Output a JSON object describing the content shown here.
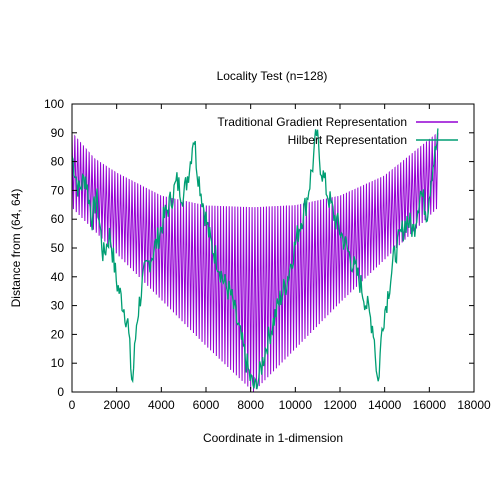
{
  "chart_data": {
    "type": "line",
    "title": "Locality Test (n=128)",
    "xlabel": "Coordinate in 1-dimension",
    "ylabel": "Distance from (64, 64)",
    "xlim": [
      0,
      18000
    ],
    "ylim": [
      0,
      100
    ],
    "xticks": [
      0,
      2000,
      4000,
      6000,
      8000,
      10000,
      12000,
      14000,
      16000,
      18000
    ],
    "yticks": [
      0,
      10,
      20,
      30,
      40,
      50,
      60,
      70,
      80,
      90,
      100
    ],
    "grid": false,
    "legend_position": "top-right",
    "series": [
      {
        "name": "Traditional Gradient Representation",
        "color": "#9400d3",
        "x_range": [
          0,
          16383
        ],
        "points_estimated": [
          [
            0,
            90
          ],
          [
            1000,
            81
          ],
          [
            2000,
            76
          ],
          [
            4000,
            68
          ],
          [
            6000,
            64.6
          ],
          [
            8128,
            64
          ],
          [
            10000,
            64.7
          ],
          [
            12000,
            68
          ],
          [
            14000,
            75
          ],
          [
            16383,
            90
          ]
        ],
        "note_envelope_lower": [
          [
            0,
            64
          ],
          [
            2000,
            48
          ],
          [
            4000,
            32
          ],
          [
            6000,
            16
          ],
          [
            8128,
            0
          ],
          [
            10000,
            15
          ],
          [
            12000,
            31
          ],
          [
            14000,
            46
          ],
          [
            16383,
            64
          ]
        ]
      },
      {
        "name": "Hilbert Representation",
        "color": "#009e73",
        "points_estimated": [
          [
            0,
            82
          ],
          [
            300,
            70
          ],
          [
            600,
            75
          ],
          [
            900,
            60
          ],
          [
            1100,
            68
          ],
          [
            1400,
            47
          ],
          [
            1700,
            55
          ],
          [
            2000,
            38
          ],
          [
            2300,
            30
          ],
          [
            2500,
            24
          ],
          [
            2700,
            2
          ],
          [
            2900,
            25
          ],
          [
            3200,
            40
          ],
          [
            3500,
            46
          ],
          [
            3800,
            52
          ],
          [
            4100,
            60
          ],
          [
            4400,
            66
          ],
          [
            4700,
            73
          ],
          [
            5000,
            68
          ],
          [
            5300,
            80
          ],
          [
            5450,
            90
          ],
          [
            5600,
            78
          ],
          [
            5900,
            64
          ],
          [
            6200,
            52
          ],
          [
            6500,
            46
          ],
          [
            6800,
            38
          ],
          [
            7100,
            34
          ],
          [
            7400,
            24
          ],
          [
            7700,
            14
          ],
          [
            8000,
            4
          ],
          [
            8200,
            1
          ],
          [
            8400,
            6
          ],
          [
            8700,
            16
          ],
          [
            9000,
            24
          ],
          [
            9300,
            32
          ],
          [
            9600,
            38
          ],
          [
            9900,
            48
          ],
          [
            10200,
            58
          ],
          [
            10500,
            66
          ],
          [
            10800,
            80
          ],
          [
            10950,
            90
          ],
          [
            11100,
            80
          ],
          [
            11400,
            70
          ],
          [
            11700,
            62
          ],
          [
            12000,
            56
          ],
          [
            12300,
            50
          ],
          [
            12600,
            44
          ],
          [
            12900,
            38
          ],
          [
            13200,
            30
          ],
          [
            13500,
            22
          ],
          [
            13700,
            2
          ],
          [
            13900,
            24
          ],
          [
            14100,
            32
          ],
          [
            14400,
            46
          ],
          [
            14700,
            54
          ],
          [
            15000,
            60
          ],
          [
            15300,
            56
          ],
          [
            15600,
            70
          ],
          [
            15900,
            62
          ],
          [
            16100,
            76
          ],
          [
            16383,
            88
          ]
        ]
      }
    ]
  }
}
